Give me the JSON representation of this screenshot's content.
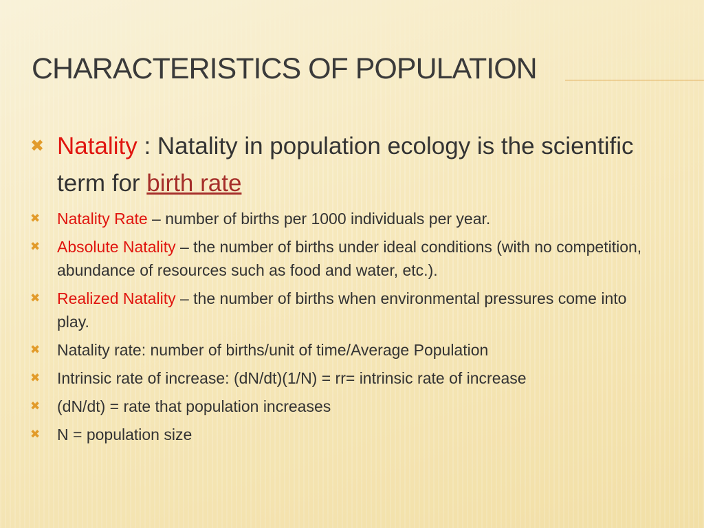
{
  "slide": {
    "title": "CHARACTERISTICS OF POPULATION",
    "colors": {
      "accent": "#e29b2a",
      "highlight": "#e0150f",
      "link": "#a52e2a",
      "text": "#333333"
    },
    "bullet_icon": "x-mark-icon",
    "bullets": [
      {
        "term": "Natality",
        "sep": " : ",
        "bold": "Natality in population ecology",
        "text": " is the scientific term for ",
        "link": "birth rate"
      },
      {
        "term": "Natality Rate",
        "text": " – number of births per 1000 individuals per year."
      },
      {
        "term": "Absolute Natality",
        "text": " – the number of births under ideal conditions (with no competition, abundance of resources such as food and water, etc.)."
      },
      {
        "term": "Realized Natality",
        "text": " – the number of births when environmental pressures come into play."
      },
      {
        "text": "Natality rate: number of births/unit of time/Average Population"
      },
      {
        "text": "Intrinsic rate of increase: (dN/dt)(1/N) = rr= intrinsic rate of increase"
      },
      {
        "text": "(dN/dt) = rate that population increases"
      },
      {
        "text": "N = population size"
      }
    ]
  }
}
